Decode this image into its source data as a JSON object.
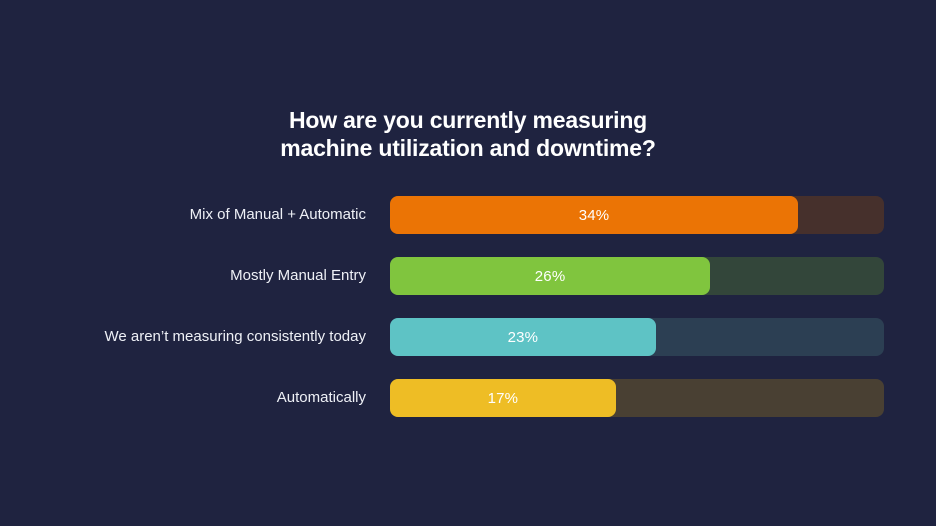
{
  "header": {
    "title_line1": "How are you currently measuring",
    "title_line2": "machine utilization and downtime?"
  },
  "chart_data": {
    "type": "bar",
    "orientation": "horizontal",
    "title": "How are you currently measuring machine utilization and downtime?",
    "categories": [
      "Mix of Manual + Automatic",
      "Mostly Manual Entry",
      "We aren’t measuring consistently today",
      "Automatically"
    ],
    "values": [
      34,
      26,
      23,
      17
    ],
    "value_labels": [
      "34%",
      "26%",
      "23%",
      "17%"
    ],
    "bar_colors": [
      "#eb7405",
      "#80c53e",
      "#5ec3c5",
      "#eebd25"
    ],
    "track_colors": [
      "#46302c",
      "#33463a",
      "#2c3f53",
      "#494033"
    ],
    "fill_pct": [
      82.6,
      64.8,
      53.8,
      45.7
    ],
    "xlabel": "",
    "ylabel": "",
    "xlim": [
      0,
      41
    ],
    "grid": false,
    "legend": false,
    "background_color": "#1f2340",
    "label_color": "#eef0f6",
    "value_text_color": "#ffffff"
  }
}
